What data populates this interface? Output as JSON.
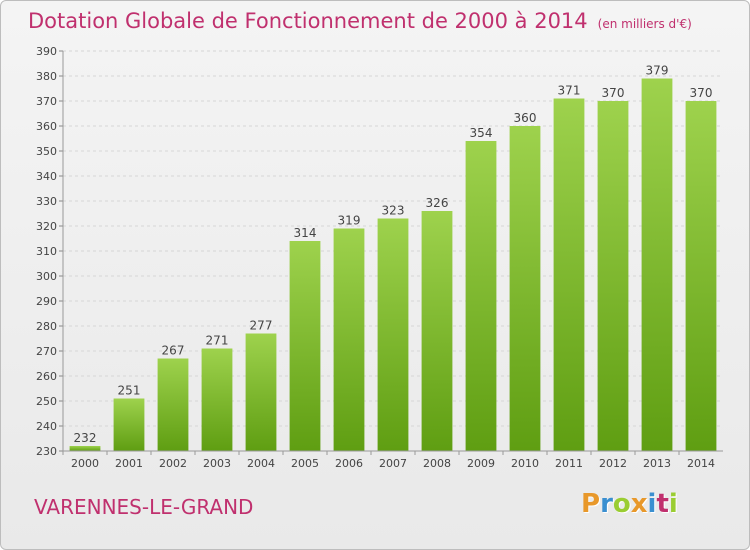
{
  "header": {
    "title": "Dotation Globale de Fonctionnement de 2000 à 2014",
    "unit": "(en milliers d'€)"
  },
  "footer": {
    "town": "VARENNES-LE-GRAND",
    "logo_text": "Proxiti",
    "logo_letter_colors": [
      "#e8982a",
      "#3a8fd0",
      "#9acd32",
      "#e8982a",
      "#3a8fd0",
      "#c0306e",
      "#9acd32"
    ]
  },
  "colors": {
    "accent": "#c0306e",
    "bar_top": "#9ed24d",
    "bar_bottom": "#5f9e12",
    "grid": "#d6d6d6"
  },
  "chart_data": {
    "type": "bar",
    "title": "Dotation Globale de Fonctionnement de 2000 à 2014",
    "subtitle": "(en milliers d'€)",
    "xlabel": "",
    "ylabel": "",
    "categories": [
      "2000",
      "2001",
      "2002",
      "2003",
      "2004",
      "2005",
      "2006",
      "2007",
      "2008",
      "2009",
      "2010",
      "2011",
      "2012",
      "2013",
      "2014"
    ],
    "values": [
      232,
      251,
      267,
      271,
      277,
      314,
      319,
      323,
      326,
      354,
      360,
      371,
      370,
      379,
      370
    ],
    "ylim": [
      230,
      390
    ],
    "yticks": [
      230,
      240,
      250,
      260,
      270,
      280,
      290,
      300,
      310,
      320,
      330,
      340,
      350,
      360,
      370,
      380,
      390
    ],
    "grid": true,
    "legend": "none"
  }
}
